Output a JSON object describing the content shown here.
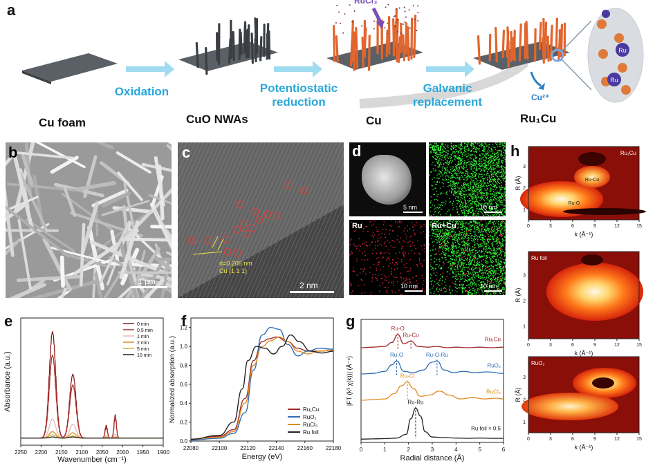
{
  "panel_a": {
    "letter": "a",
    "stages": [
      "Cu foam",
      "CuO NWAs",
      "Cu",
      "Ru₁Cu"
    ],
    "steps": [
      "Oxidation",
      "Potentiostatic reduction",
      "Galvanic replacement"
    ],
    "step_lines": {
      "s2a": "Potentiostatic",
      "s2b": "reduction",
      "s3a": "Galvanic",
      "s3b": "replacement"
    },
    "precursor": "RuCl₃",
    "released_ion": "Cu²⁺",
    "atom_label": "Ru"
  },
  "panel_b": {
    "letter": "b",
    "scale": "1 μm"
  },
  "panel_c": {
    "letter": "c",
    "scale": "2 nm",
    "d_spacing": "d=0.206 nm",
    "plane": "Cu (1 1 1)"
  },
  "panel_d": {
    "letter": "d",
    "maps": [
      {
        "label": "",
        "scale": "5 nm"
      },
      {
        "label": "Cu",
        "scale": "10 nm"
      },
      {
        "label": "Ru",
        "scale": "10 nm"
      },
      {
        "label": "Ru+Cu",
        "scale": "10 nm"
      }
    ]
  },
  "panel_e": {
    "letter": "e"
  },
  "panel_f": {
    "letter": "f"
  },
  "panel_g": {
    "letter": "g"
  },
  "panel_h": {
    "letter": "h",
    "maps": [
      {
        "name": "Ru₁Cu",
        "peaks": [
          "Ru-Cu",
          "Ru-O"
        ]
      },
      {
        "name": "Ru foil",
        "peaks": []
      },
      {
        "name": "RuO₂",
        "peaks": []
      }
    ],
    "xlabel": "k (Å⁻¹)",
    "ylabel": "R (Å)",
    "xticks": [
      "0",
      "3",
      "6",
      "9",
      "12",
      "15"
    ],
    "yticks": [
      "1",
      "2",
      "3"
    ]
  },
  "colors": {
    "step_text": "#29a8d8",
    "ru1cu": "#a0282a",
    "ruo2": "#2f6db5",
    "rucl3": "#e08a1f",
    "rufoil": "#222222"
  },
  "chart_data": [
    {
      "id": "e",
      "type": "line",
      "xlabel": "Wavenumber (cm⁻¹)",
      "ylabel": "Absorbance (a.u.)",
      "xlim": [
        2250,
        1900
      ],
      "x_ticks": [
        "2250",
        "2200",
        "2150",
        "2100",
        "2050",
        "2000",
        "1950",
        "1900"
      ],
      "series": [
        {
          "name": "0   min",
          "color": "#8b1a1a",
          "peaks": [
            1.0,
            0.6,
            0.12,
            0.22
          ]
        },
        {
          "name": "0.5 min",
          "color": "#b33232",
          "peaks": [
            0.78,
            0.5,
            0.1,
            0.2
          ]
        },
        {
          "name": "1   min",
          "color": "#e2b8b8",
          "peaks": [
            0.18,
            0.13,
            0.03,
            0.04
          ]
        },
        {
          "name": "2   min",
          "color": "#e08a1f",
          "peaks": [
            0.06,
            0.05,
            0.01,
            0.01
          ]
        },
        {
          "name": "5   min",
          "color": "#c9b23a",
          "peaks": [
            0.03,
            0.02,
            0.0,
            0.0
          ]
        },
        {
          "name": "10  min",
          "color": "#222222",
          "peaks": [
            0.01,
            0.01,
            0.0,
            0.0
          ]
        }
      ],
      "peak_positions": [
        2172,
        2122,
        2040,
        2018
      ]
    },
    {
      "id": "f",
      "type": "line",
      "xlabel": "Energy (eV)",
      "ylabel": "Normalized absorption (a.u.)",
      "xlim": [
        22080,
        22180
      ],
      "ylim": [
        0,
        1.3
      ],
      "x_ticks": [
        "22080",
        "22100",
        "22120",
        "22140",
        "22160",
        "22180"
      ],
      "y_ticks": [
        "0.0",
        "0.2",
        "0.4",
        "0.6",
        "0.8",
        "1.0",
        "1.2"
      ],
      "series": [
        {
          "name": "Ru₁Cu",
          "color": "#a0282a",
          "edge": 22121,
          "x": [
            22080,
            22100,
            22110,
            22118,
            22124,
            22130,
            22135,
            22140,
            22148,
            22155,
            22162,
            22170,
            22180
          ],
          "y": [
            0.02,
            0.05,
            0.12,
            0.45,
            0.85,
            1.05,
            1.08,
            1.1,
            1.05,
            0.98,
            0.95,
            0.95,
            0.96
          ]
        },
        {
          "name": "RuO₂",
          "color": "#2f6db5",
          "x": [
            22080,
            22100,
            22110,
            22118,
            22124,
            22130,
            22136,
            22142,
            22148,
            22155,
            22162,
            22170,
            22180
          ],
          "y": [
            0.01,
            0.03,
            0.08,
            0.3,
            0.75,
            1.12,
            1.2,
            1.18,
            1.02,
            0.9,
            0.95,
            0.98,
            0.97
          ]
        },
        {
          "name": "RuCl₃",
          "color": "#e08a1f",
          "x": [
            22080,
            22100,
            22110,
            22118,
            22124,
            22130,
            22136,
            22142,
            22148,
            22155,
            22162,
            22170,
            22180
          ],
          "y": [
            0.02,
            0.04,
            0.1,
            0.4,
            0.8,
            1.0,
            1.06,
            1.1,
            1.05,
            0.95,
            0.92,
            0.95,
            0.96
          ]
        },
        {
          "name": "Ru foil",
          "color": "#222222",
          "x": [
            22080,
            22100,
            22110,
            22116,
            22120,
            22126,
            22132,
            22138,
            22144,
            22150,
            22156,
            22164,
            22172,
            22180
          ],
          "y": [
            0.02,
            0.06,
            0.2,
            0.55,
            0.85,
            1.0,
            0.98,
            0.92,
            1.0,
            1.12,
            1.05,
            0.95,
            0.93,
            0.95
          ]
        }
      ]
    },
    {
      "id": "g",
      "type": "line",
      "xlabel": "Radial distance (Å)",
      "ylabel": "|FT (k³ χ(k))| (Å⁻⁴)",
      "xlim": [
        0,
        6
      ],
      "x_ticks": [
        "0",
        "1",
        "2",
        "3",
        "4",
        "5",
        "6"
      ],
      "series": [
        {
          "name": "Ru₁Cu",
          "color": "#a0282a",
          "offset": 3.4,
          "x": [
            0,
            0.5,
            1.0,
            1.3,
            1.55,
            1.8,
            2.1,
            2.4,
            2.8,
            3.2,
            3.6,
            4.0,
            4.5,
            5.0,
            5.5,
            6.0
          ],
          "y": [
            0.1,
            0.12,
            0.15,
            0.3,
            0.6,
            0.25,
            0.35,
            0.15,
            0.12,
            0.15,
            0.1,
            0.12,
            0.1,
            0.12,
            0.1,
            0.12
          ]
        },
        {
          "name": "RuO₂",
          "color": "#2f6db5",
          "offset": 2.4,
          "x": [
            0,
            0.5,
            1.0,
            1.3,
            1.5,
            1.8,
            2.2,
            2.6,
            3.0,
            3.2,
            3.5,
            3.9,
            4.3,
            4.8,
            5.3,
            6.0
          ],
          "y": [
            0.1,
            0.12,
            0.2,
            0.45,
            0.6,
            0.2,
            0.15,
            0.25,
            0.55,
            0.6,
            0.25,
            0.15,
            0.2,
            0.15,
            0.18,
            0.12
          ]
        },
        {
          "name": "RuCl₃",
          "color": "#e08a1f",
          "offset": 1.4,
          "x": [
            0,
            0.5,
            1.0,
            1.4,
            1.7,
            1.95,
            2.2,
            2.5,
            2.9,
            3.3,
            3.7,
            4.2,
            4.7,
            5.2,
            5.7,
            6.0
          ],
          "y": [
            0.1,
            0.12,
            0.15,
            0.35,
            0.65,
            0.8,
            0.55,
            0.25,
            0.3,
            0.45,
            0.3,
            0.15,
            0.2,
            0.15,
            0.18,
            0.15
          ]
        },
        {
          "name": "Ru foil × 0.5",
          "color": "#222222",
          "offset": 0.0,
          "x": [
            0,
            0.5,
            1.0,
            1.5,
            1.9,
            2.1,
            2.3,
            2.5,
            2.7,
            3.0,
            3.5,
            4.0,
            4.5,
            5.0,
            5.5,
            6.0
          ],
          "y": [
            0.02,
            0.03,
            0.04,
            0.06,
            0.2,
            0.8,
            1.2,
            0.9,
            0.3,
            0.1,
            0.08,
            0.06,
            0.05,
            0.06,
            0.05,
            0.05
          ]
        }
      ],
      "annotations": [
        {
          "text": "Ru-O",
          "series": "Ru₁Cu",
          "x": 1.55
        },
        {
          "text": "Ru-Cu",
          "series": "Ru₁Cu",
          "x": 2.1
        },
        {
          "text": "Ru-O",
          "series": "RuO₂",
          "x": 1.5
        },
        {
          "text": "Ru-O-Ru",
          "series": "RuO₂",
          "x": 3.2
        },
        {
          "text": "Ru-Cl",
          "series": "RuCl₃",
          "x": 1.95
        },
        {
          "text": "Ru-Ru",
          "series": "Ru foil × 0.5",
          "x": 2.3
        }
      ]
    }
  ]
}
